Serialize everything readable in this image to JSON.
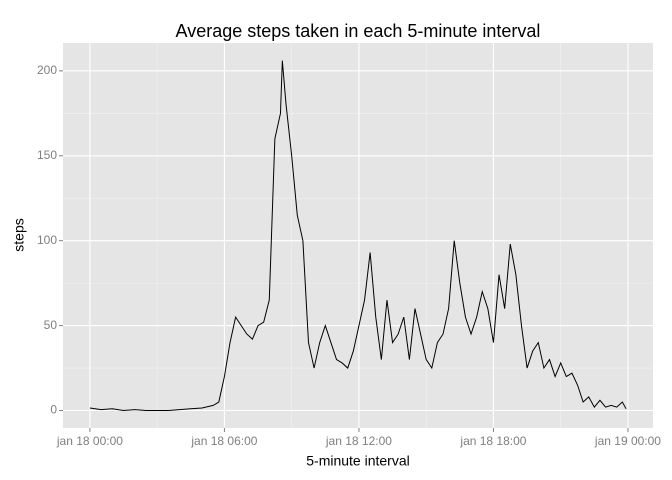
{
  "chart_data": {
    "type": "line",
    "title": "Average steps taken in each 5-minute interval",
    "x_label": "5-minute interval",
    "y_label": "steps",
    "x": [
      "jan 18 00:00",
      "jan 18 00:30",
      "jan 18 01:00",
      "jan 18 01:30",
      "jan 18 02:00",
      "jan 18 02:30",
      "jan 18 03:00",
      "jan 18 03:30",
      "jan 18 04:00",
      "jan 18 04:30",
      "jan 18 05:00",
      "jan 18 05:30",
      "jan 18 05:45",
      "jan 18 06:00",
      "jan 18 06:15",
      "jan 18 06:30",
      "jan 18 06:45",
      "jan 18 07:00",
      "jan 18 07:15",
      "jan 18 07:30",
      "jan 18 07:45",
      "jan 18 08:00",
      "jan 18 08:15",
      "jan 18 08:30",
      "jan 18 08:35",
      "jan 18 08:45",
      "jan 18 09:00",
      "jan 18 09:15",
      "jan 18 09:30",
      "jan 18 09:45",
      "jan 18 10:00",
      "jan 18 10:15",
      "jan 18 10:30",
      "jan 18 10:45",
      "jan 18 11:00",
      "jan 18 11:15",
      "jan 18 11:30",
      "jan 18 11:45",
      "jan 18 12:00",
      "jan 18 12:15",
      "jan 18 12:30",
      "jan 18 12:45",
      "jan 18 13:00",
      "jan 18 13:15",
      "jan 18 13:30",
      "jan 18 13:45",
      "jan 18 14:00",
      "jan 18 14:15",
      "jan 18 14:30",
      "jan 18 14:45",
      "jan 18 15:00",
      "jan 18 15:15",
      "jan 18 15:30",
      "jan 18 15:45",
      "jan 18 16:00",
      "jan 18 16:15",
      "jan 18 16:30",
      "jan 18 16:45",
      "jan 18 17:00",
      "jan 18 17:15",
      "jan 18 17:30",
      "jan 18 17:45",
      "jan 18 18:00",
      "jan 18 18:15",
      "jan 18 18:30",
      "jan 18 18:45",
      "jan 18 19:00",
      "jan 18 19:15",
      "jan 18 19:30",
      "jan 18 19:45",
      "jan 18 20:00",
      "jan 18 20:15",
      "jan 18 20:30",
      "jan 18 20:45",
      "jan 18 21:00",
      "jan 18 21:15",
      "jan 18 21:30",
      "jan 18 21:45",
      "jan 18 22:00",
      "jan 18 22:15",
      "jan 18 22:30",
      "jan 18 22:45",
      "jan 18 23:00",
      "jan 18 23:15",
      "jan 18 23:30",
      "jan 18 23:45",
      "jan 18 23:55"
    ],
    "series": [
      {
        "name": "steps",
        "color": "#000000",
        "values": [
          1.5,
          0.5,
          1,
          0,
          0.5,
          0,
          0,
          0,
          0.5,
          1,
          1.5,
          3,
          5,
          20,
          40,
          55,
          50,
          45,
          42,
          50,
          52,
          65,
          160,
          175,
          206,
          180,
          150,
          115,
          100,
          40,
          25,
          40,
          50,
          40,
          30,
          28,
          25,
          35,
          50,
          65,
          93,
          55,
          30,
          65,
          40,
          45,
          55,
          30,
          60,
          45,
          30,
          25,
          40,
          45,
          60,
          100,
          75,
          55,
          45,
          55,
          70,
          60,
          40,
          80,
          60,
          98,
          80,
          50,
          25,
          35,
          40,
          25,
          30,
          20,
          28,
          20,
          22,
          15,
          5,
          8,
          2,
          6,
          2,
          3,
          2,
          5,
          1
        ]
      }
    ],
    "xlim": [
      "jan 17 22:48",
      "jan 19 01:07"
    ],
    "xticks": [
      "jan 18 00:00",
      "jan 18 06:00",
      "jan 18 12:00",
      "jan 18 18:00",
      "jan 19 00:00"
    ],
    "ylim": [
      -10.3,
      216.4
    ],
    "yticks": [
      0,
      50,
      100,
      150,
      200
    ],
    "grid": true
  }
}
